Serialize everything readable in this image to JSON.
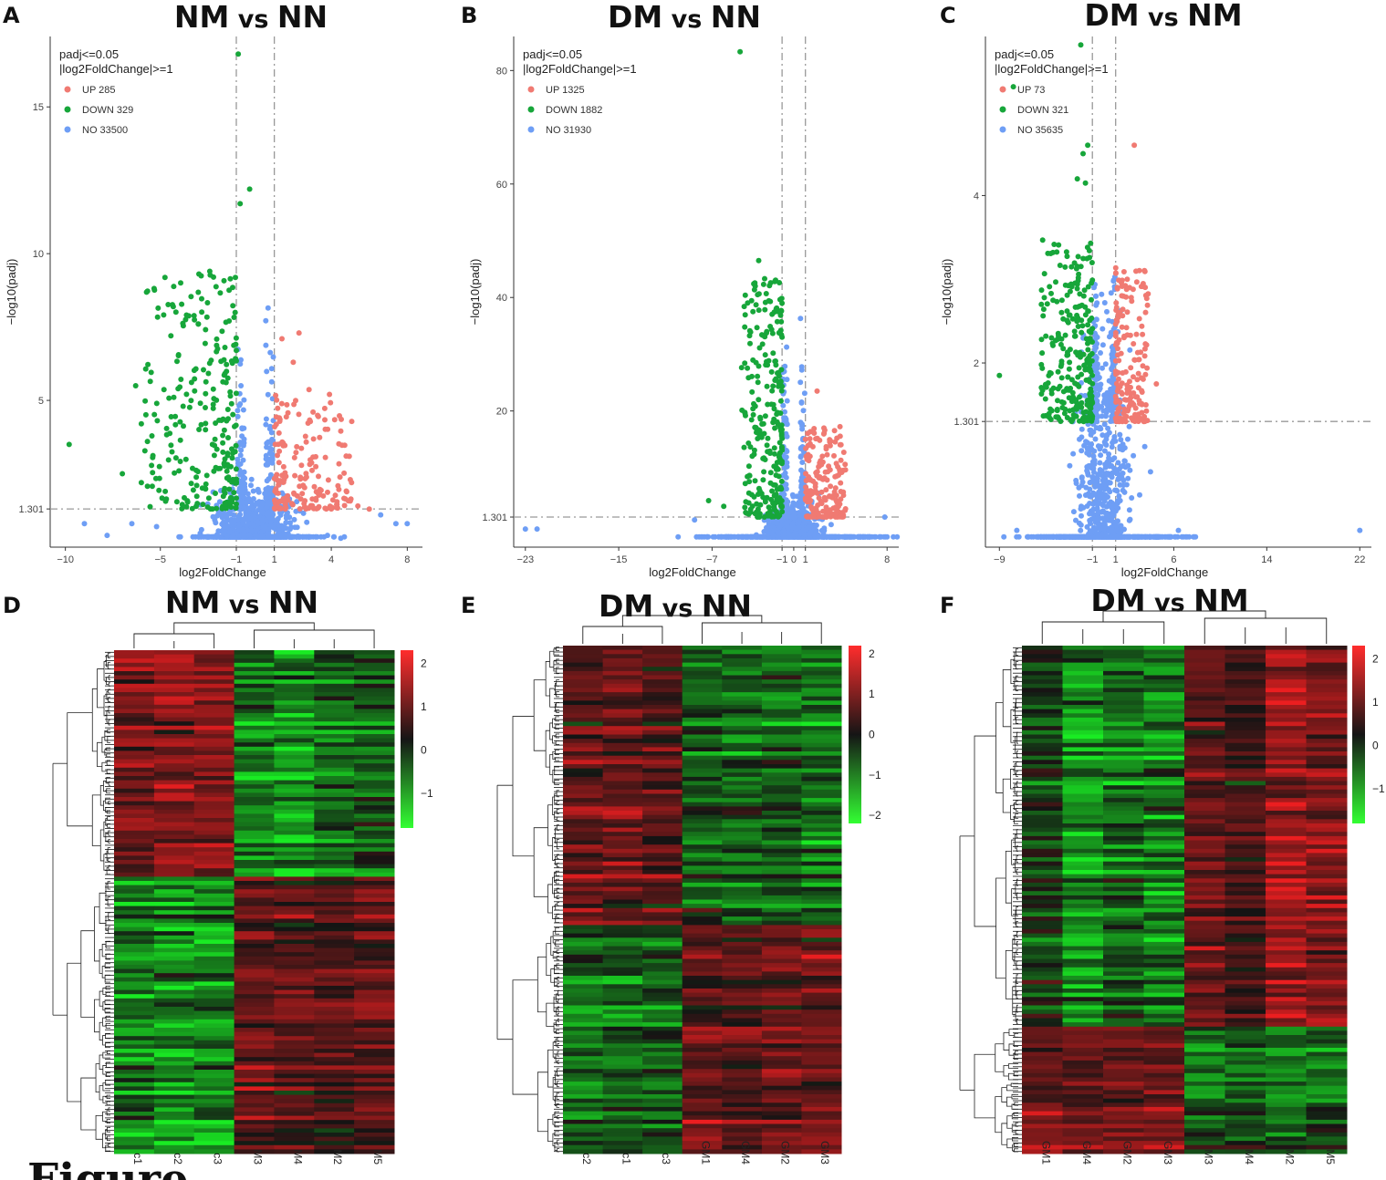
{
  "figure_label": "Figure",
  "chart_data": [
    {
      "panel": "A",
      "type": "scatter",
      "subtype": "volcano",
      "title": [
        "NM",
        "vs",
        "NN"
      ],
      "xlabel": "log2FoldChange",
      "ylabel": "-log10(padj)",
      "xlim": [
        -10.8,
        8.8
      ],
      "ylim": [
        0,
        17.4
      ],
      "xticks": [
        -10,
        -5,
        -1,
        1,
        4,
        8
      ],
      "yticks": [
        1.301,
        5,
        10,
        15
      ],
      "fc_threshold": 1,
      "padj_threshold": 1.301,
      "legend": {
        "title": [
          "padj<=0.05",
          "|log2FoldChange|>=1"
        ],
        "entries": [
          {
            "label": "UP 285",
            "color": "#f07a72"
          },
          {
            "label": "DOWN 329",
            "color": "#17a63a"
          },
          {
            "label": "NO 33500",
            "color": "#6e9ef5"
          }
        ]
      },
      "series": [
        {
          "name": "UP",
          "count": 285,
          "color": "#f07a72",
          "xmax": 6.1,
          "ymax": 7.2,
          "points": [
            [
              1.4,
              7.1
            ],
            [
              2.3,
              7.3
            ],
            [
              2.0,
              6.3
            ],
            [
              5.0,
              2.3
            ],
            [
              5.4,
              1.4
            ],
            [
              6.0,
              1.3
            ],
            [
              3.2,
              1.6
            ]
          ]
        },
        {
          "name": "DOWN",
          "count": 329,
          "color": "#17a63a",
          "xmin": -9.8,
          "ymax": 16.8,
          "points": [
            [
              -0.9,
              16.8
            ],
            [
              -0.3,
              12.2
            ],
            [
              -0.8,
              11.7
            ],
            [
              -2.4,
              9.4
            ],
            [
              -2.2,
              9.2
            ],
            [
              -9.8,
              3.5
            ],
            [
              -6.3,
              5.5
            ],
            [
              -6.0,
              4.2
            ],
            [
              -7.0,
              2.5
            ],
            [
              -6.0,
              2.2
            ],
            [
              -3.8,
              4.8
            ]
          ]
        },
        {
          "name": "NO",
          "count": 33500,
          "color": "#6e9ef5",
          "points": [
            [
              -9.0,
              0.8
            ],
            [
              -7.8,
              0.4
            ],
            [
              -6.5,
              0.8
            ],
            [
              -5.2,
              0.7
            ],
            [
              6.6,
              1.1
            ],
            [
              7.4,
              0.8
            ],
            [
              8.0,
              0.8
            ],
            [
              3.8,
              0.4
            ],
            [
              4.5,
              0.3
            ]
          ]
        }
      ]
    },
    {
      "panel": "B",
      "type": "scatter",
      "subtype": "volcano",
      "title": [
        "DM",
        "vs",
        "NN"
      ],
      "xlabel": "log2FoldChange",
      "ylabel": "-log10(padj)",
      "xlim": [
        -24.0,
        9.0
      ],
      "ylim": [
        -4.0,
        86.0
      ],
      "xticks": [
        -23,
        -15,
        -7,
        -1,
        0,
        1,
        8
      ],
      "yticks": [
        1.301,
        20,
        40,
        60,
        80
      ],
      "fc_threshold": 1,
      "padj_threshold": 1.301,
      "legend": {
        "title": [
          "padj<=0.05",
          "|log2FoldChange|>=1"
        ],
        "entries": [
          {
            "label": "UP 1325",
            "color": "#f07a72"
          },
          {
            "label": "DOWN 1882",
            "color": "#17a63a"
          },
          {
            "label": "NO 31930",
            "color": "#6e9ef5"
          }
        ]
      },
      "series": [
        {
          "name": "UP",
          "count": 1325,
          "color": "#f07a72",
          "xmax": 5.3,
          "ymax": 23.5,
          "points": [
            [
              2.0,
              23.5
            ],
            [
              1.4,
              12.0
            ],
            [
              2.5,
              11.0
            ]
          ]
        },
        {
          "name": "DOWN",
          "count": 1882,
          "color": "#17a63a",
          "xmin": -7.3,
          "ymax": 83.3,
          "points": [
            [
              -4.6,
              83.3
            ],
            [
              -3.0,
              46.5
            ],
            [
              -3.3,
              42.0
            ],
            [
              -3.1,
              40.5
            ],
            [
              -3.5,
              37.5
            ],
            [
              -7.3,
              4.2
            ],
            [
              -6.0,
              3.2
            ]
          ]
        },
        {
          "name": "NO",
          "count": 31930,
          "color": "#6e9ef5",
          "points": [
            [
              -23.0,
              -0.8
            ],
            [
              -22.0,
              -0.8
            ],
            [
              7.8,
              1.3
            ],
            [
              -8.5,
              0.8
            ]
          ]
        }
      ]
    },
    {
      "panel": "C",
      "type": "scatter",
      "subtype": "volcano",
      "title": [
        "DM",
        "vs",
        "NM"
      ],
      "xlabel": "log2FoldChange",
      "ylabel": "-log10(padj)",
      "xlim": [
        -10.2,
        23.0
      ],
      "ylim": [
        -0.2,
        5.9
      ],
      "xticks": [
        -9,
        -1,
        1,
        6,
        14,
        22
      ],
      "yticks": [
        1.301,
        2,
        4
      ],
      "fc_threshold": 1,
      "padj_threshold": 1.301,
      "legend": {
        "title": [
          "padj<=0.05",
          "|log2FoldChange|>=1"
        ],
        "entries": [
          {
            "label": "UP 73",
            "color": "#f07a72"
          },
          {
            "label": "DOWN 321",
            "color": "#17a63a"
          },
          {
            "label": "NO 35635",
            "color": "#6e9ef5"
          }
        ]
      },
      "series": [
        {
          "name": "UP",
          "count": 73,
          "color": "#f07a72",
          "xmax": 4.5,
          "ymax": 4.6,
          "points": [
            [
              2.6,
              4.6
            ],
            [
              2.0,
              3.0
            ],
            [
              4.5,
              1.75
            ],
            [
              2.2,
              2.9
            ]
          ]
        },
        {
          "name": "DOWN",
          "count": 321,
          "color": "#17a63a",
          "xmin": -9.0,
          "ymax": 5.8,
          "points": [
            [
              -2.0,
              5.8
            ],
            [
              -7.8,
              5.3
            ],
            [
              -9.0,
              1.85
            ],
            [
              -4.0,
              1.55
            ],
            [
              -1.4,
              4.6
            ],
            [
              -1.8,
              4.5
            ],
            [
              -2.3,
              4.2
            ],
            [
              -1.6,
              4.15
            ]
          ]
        },
        {
          "name": "NO",
          "count": 35635,
          "color": "#6e9ef5",
          "points": [
            [
              22.0,
              0.0
            ],
            [
              -7.5,
              0.0
            ],
            [
              6.4,
              0.0
            ],
            [
              3.5,
              1.0
            ],
            [
              4.0,
              0.7
            ]
          ]
        }
      ]
    },
    {
      "panel": "D",
      "type": "heatmap",
      "title": [
        "NM",
        "vs",
        "NN"
      ],
      "columns": [
        "c1",
        "c2",
        "c3",
        "M3",
        "M4",
        "M2",
        "M5"
      ],
      "colorbar": {
        "ticks": [
          2,
          1,
          0,
          -1
        ],
        "min": -1.8,
        "max": 2.3
      },
      "row_clusters": [
        {
          "label": "upper",
          "fraction": 0.45,
          "levels": [
            1.2,
            1.4,
            1.3,
            -1.0,
            -1.3,
            -0.8,
            -0.6
          ]
        },
        {
          "label": "lower",
          "fraction": 0.55,
          "levels": [
            -0.9,
            -1.1,
            -1.0,
            1.0,
            0.8,
            0.7,
            0.9
          ]
        }
      ]
    },
    {
      "panel": "E",
      "type": "heatmap",
      "title": [
        "DM",
        "vs",
        "NN"
      ],
      "columns": [
        "c2",
        "c1",
        "c3",
        "GM1",
        "GM4",
        "GM2",
        "GM3"
      ],
      "colorbar": {
        "ticks": [
          2,
          1,
          0,
          -1,
          -2
        ],
        "min": -2.2,
        "max": 2.2
      },
      "row_clusters": [
        {
          "label": "upper",
          "fraction": 0.55,
          "levels": [
            0.9,
            1.0,
            0.8,
            -0.7,
            -0.9,
            -0.8,
            -1.0
          ]
        },
        {
          "label": "lower",
          "fraction": 0.45,
          "levels": [
            -1.0,
            -0.9,
            -0.9,
            0.8,
            0.7,
            0.9,
            0.9
          ]
        }
      ]
    },
    {
      "panel": "F",
      "type": "heatmap",
      "title": [
        "DM",
        "vs",
        "NM"
      ],
      "columns": [
        "GM1",
        "GM4",
        "GM2",
        "GM3",
        "M3",
        "M4",
        "M2",
        "M5"
      ],
      "colorbar": {
        "ticks": [
          2,
          1,
          0,
          -1
        ],
        "min": -1.8,
        "max": 2.3
      },
      "row_clusters": [
        {
          "label": "upper",
          "fraction": 0.75,
          "levels": [
            -0.4,
            -1.2,
            -0.8,
            -1.0,
            0.9,
            0.5,
            1.6,
            1.2
          ]
        },
        {
          "label": "lower",
          "fraction": 0.25,
          "levels": [
            0.9,
            0.8,
            1.0,
            1.1,
            -0.9,
            -0.7,
            -1.0,
            -0.8
          ]
        }
      ]
    }
  ]
}
